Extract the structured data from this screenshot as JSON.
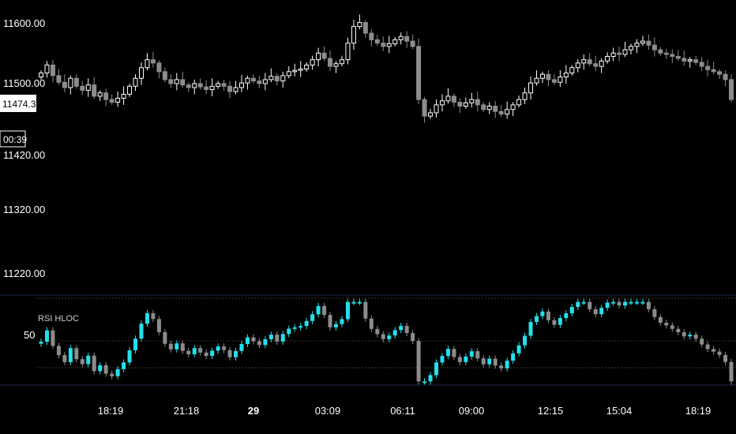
{
  "chart_data": [
    {
      "type": "candlestick",
      "title": "",
      "price_axis": {
        "tick_labels": [
          "11600.00",
          "11500.00",
          "11420.00",
          "11320.00",
          "11220.00"
        ],
        "ylim": [
          11180,
          11620
        ]
      },
      "time_axis": {
        "tick_labels": [
          "18:19",
          "21:18",
          "29",
          "03:09",
          "06:11",
          "09:00",
          "12:15",
          "15:04",
          "18:19"
        ],
        "bold_labels": [
          "29"
        ]
      },
      "current_price_label": "11474.31",
      "countdown_label": "00:39",
      "colors": {
        "up": "#ffffff",
        "down": "#8c8c8c",
        "background": "#000000"
      },
      "closes": [
        11510,
        11522,
        11506,
        11496,
        11488,
        11502,
        11490,
        11484,
        11492,
        11475,
        11480,
        11470,
        11466,
        11472,
        11478,
        11490,
        11502,
        11518,
        11530,
        11525,
        11512,
        11500,
        11494,
        11500,
        11492,
        11488,
        11494,
        11489,
        11485,
        11490,
        11494,
        11490,
        11482,
        11488,
        11495,
        11502,
        11498,
        11494,
        11500,
        11505,
        11498,
        11506,
        11512,
        11514,
        11516,
        11522,
        11530,
        11540,
        11532,
        11520,
        11524,
        11530,
        11555,
        11580,
        11586,
        11570,
        11560,
        11555,
        11550,
        11554,
        11560,
        11565,
        11558,
        11550,
        11470,
        11445,
        11450,
        11462,
        11468,
        11475,
        11466,
        11460,
        11465,
        11470,
        11462,
        11455,
        11460,
        11452,
        11448,
        11455,
        11462,
        11470,
        11480,
        11495,
        11502,
        11508,
        11500,
        11496,
        11504,
        11510,
        11518,
        11525,
        11530,
        11524,
        11520,
        11528,
        11535,
        11540,
        11538,
        11545,
        11550,
        11555,
        11558,
        11552,
        11545,
        11540,
        11538,
        11535,
        11532,
        11528,
        11530,
        11526,
        11520,
        11515,
        11512,
        11508,
        11500,
        11470
      ],
      "indicator": {
        "name": "RSI HLOC",
        "level_label": "50",
        "ylim": [
          10,
          90
        ],
        "colors": {
          "up": "#23e0ec",
          "down": "#8c8c8c"
        }
      }
    }
  ]
}
